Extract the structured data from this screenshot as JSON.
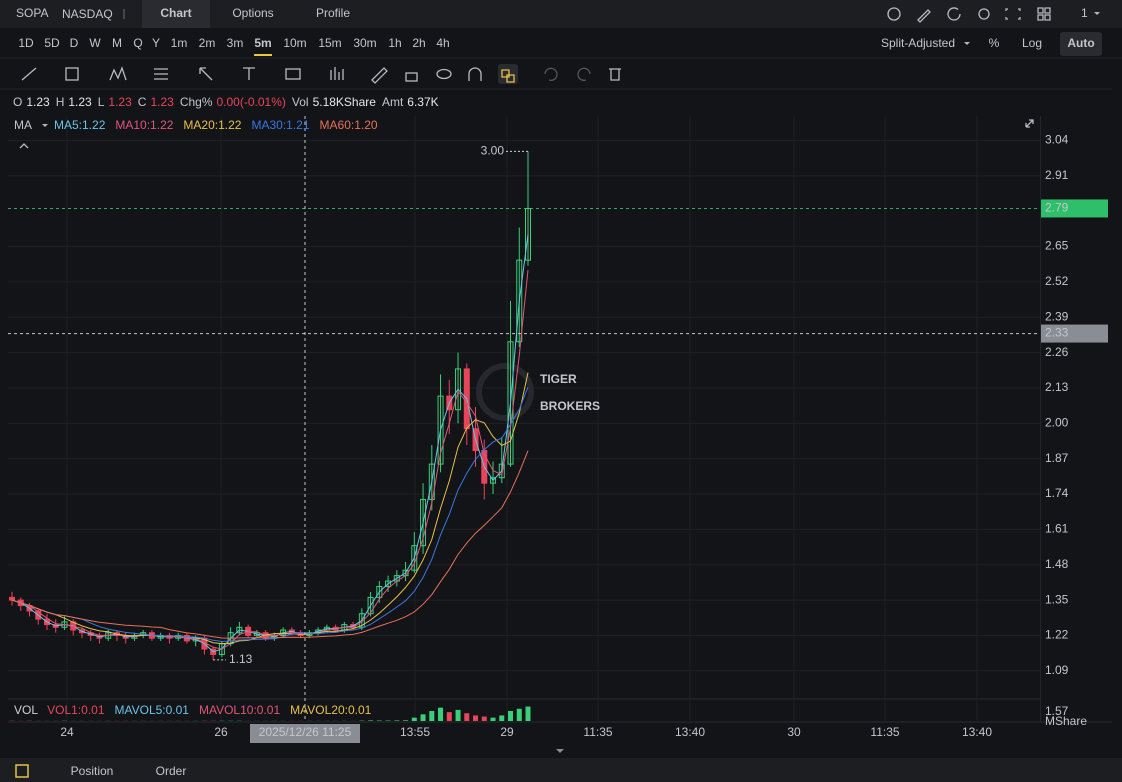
{
  "header": {
    "symbol": "SOPA",
    "exchange": "NASDAQ",
    "tabs": [
      "Chart",
      "Options",
      "Profile"
    ],
    "active_tab": 0,
    "layout_count": "1"
  },
  "intervals": [
    "1D",
    "5D",
    "D",
    "W",
    "M",
    "Q",
    "Y",
    "1m",
    "2m",
    "3m",
    "5m",
    "10m",
    "15m",
    "30m",
    "1h",
    "2h",
    "4h"
  ],
  "active_interval": 10,
  "options": [
    "Split-Adjusted",
    "%",
    "Log",
    "Auto"
  ],
  "active_option": 3,
  "quote": [
    {
      "label": "O",
      "value": 1.23
    },
    {
      "label": "H",
      "value": 1.23
    },
    {
      "label": "L",
      "value": 1.23
    },
    {
      "label": "C",
      "value": 1.23
    },
    {
      "label": "Chg%",
      "value": "0.00(-0.01%)"
    },
    {
      "label": "Vol",
      "value": "5.18KShare"
    },
    {
      "label": "Amt",
      "value": "6.37K"
    }
  ],
  "chart_data": {
    "type": "candlestick",
    "ma_label": "MA",
    "ma_legend": [
      {
        "name": "MA5:1.22",
        "color": "#6cc4e6"
      },
      {
        "name": "MA10:1.22",
        "color": "#e0567a"
      },
      {
        "name": "MA20:1.22",
        "color": "#e6c04a"
      },
      {
        "name": "MA30:1.21",
        "color": "#3a78e0"
      },
      {
        "name": "MA60:1.20",
        "color": "#e8705a"
      }
    ],
    "up_color": "#3ad07a",
    "down_color": "#e8455a",
    "candles": [
      [
        1.36,
        1.38,
        1.33,
        1.35
      ],
      [
        1.35,
        1.36,
        1.31,
        1.33
      ],
      [
        1.33,
        1.34,
        1.29,
        1.31
      ],
      [
        1.31,
        1.32,
        1.26,
        1.28
      ],
      [
        1.28,
        1.3,
        1.24,
        1.26
      ],
      [
        1.26,
        1.28,
        1.23,
        1.25
      ],
      [
        1.25,
        1.29,
        1.24,
        1.27
      ],
      [
        1.27,
        1.28,
        1.22,
        1.24
      ],
      [
        1.24,
        1.25,
        1.21,
        1.23
      ],
      [
        1.23,
        1.24,
        1.2,
        1.22
      ],
      [
        1.22,
        1.23,
        1.19,
        1.21
      ],
      [
        1.21,
        1.24,
        1.2,
        1.23
      ],
      [
        1.23,
        1.24,
        1.2,
        1.22
      ],
      [
        1.22,
        1.23,
        1.19,
        1.21
      ],
      [
        1.21,
        1.23,
        1.2,
        1.22
      ],
      [
        1.22,
        1.24,
        1.21,
        1.23
      ],
      [
        1.23,
        1.24,
        1.2,
        1.21
      ],
      [
        1.21,
        1.23,
        1.2,
        1.22
      ],
      [
        1.22,
        1.23,
        1.19,
        1.21
      ],
      [
        1.21,
        1.23,
        1.2,
        1.22
      ],
      [
        1.22,
        1.23,
        1.19,
        1.2
      ],
      [
        1.2,
        1.22,
        1.18,
        1.21
      ],
      [
        1.21,
        1.22,
        1.15,
        1.17
      ],
      [
        1.17,
        1.18,
        1.13,
        1.15
      ],
      [
        1.15,
        1.2,
        1.14,
        1.19
      ],
      [
        1.19,
        1.25,
        1.18,
        1.23
      ],
      [
        1.23,
        1.27,
        1.22,
        1.25
      ],
      [
        1.25,
        1.26,
        1.21,
        1.22
      ],
      [
        1.22,
        1.24,
        1.21,
        1.23
      ],
      [
        1.23,
        1.24,
        1.2,
        1.21
      ],
      [
        1.21,
        1.23,
        1.2,
        1.22
      ],
      [
        1.22,
        1.25,
        1.21,
        1.24
      ],
      [
        1.24,
        1.25,
        1.22,
        1.23
      ],
      [
        1.23,
        1.24,
        1.21,
        1.22
      ],
      [
        1.22,
        1.24,
        1.21,
        1.23
      ],
      [
        1.23,
        1.25,
        1.22,
        1.24
      ],
      [
        1.24,
        1.26,
        1.23,
        1.25
      ],
      [
        1.25,
        1.26,
        1.23,
        1.24
      ],
      [
        1.24,
        1.27,
        1.23,
        1.26
      ],
      [
        1.26,
        1.27,
        1.24,
        1.25
      ],
      [
        1.25,
        1.32,
        1.24,
        1.3
      ],
      [
        1.3,
        1.38,
        1.29,
        1.36
      ],
      [
        1.36,
        1.42,
        1.34,
        1.4
      ],
      [
        1.4,
        1.44,
        1.38,
        1.42
      ],
      [
        1.42,
        1.46,
        1.4,
        1.44
      ],
      [
        1.44,
        1.49,
        1.42,
        1.46
      ],
      [
        1.46,
        1.6,
        1.45,
        1.55
      ],
      [
        1.55,
        1.78,
        1.52,
        1.72
      ],
      [
        1.72,
        1.92,
        1.68,
        1.85
      ],
      [
        1.85,
        2.18,
        1.82,
        2.1
      ],
      [
        2.1,
        2.16,
        1.96,
        2.05
      ],
      [
        2.05,
        2.26,
        2.0,
        2.2
      ],
      [
        2.2,
        2.22,
        1.92,
        1.98
      ],
      [
        1.98,
        2.06,
        1.84,
        1.9
      ],
      [
        1.9,
        1.94,
        1.72,
        1.78
      ],
      [
        1.78,
        1.86,
        1.74,
        1.8
      ],
      [
        1.8,
        1.95,
        1.78,
        1.85
      ],
      [
        1.85,
        2.45,
        1.84,
        2.3
      ],
      [
        2.3,
        2.72,
        2.28,
        2.6
      ],
      [
        2.6,
        3.0,
        2.58,
        2.79
      ]
    ],
    "ylim": [
      0.99,
      3.13
    ],
    "yticks": [
      3.04,
      2.91,
      2.65,
      2.52,
      2.39,
      2.26,
      2.13,
      {
        "value": 2,
        "label": "2.00"
      },
      1.87,
      1.74,
      1.61,
      1.48,
      1.35,
      1.22,
      1.09
    ],
    "grid": true,
    "last_price": 2.79,
    "crosshair_price": 2.33,
    "crosshair_time": "2025/12/26 11:25",
    "high_annotation": {
      "value": 3,
      "label": "3.00"
    },
    "low_annotation": 1.13,
    "watermark": [
      "TIGER",
      "BROKERS"
    ],
    "xlabels": [
      "24",
      "26",
      "13:55",
      "29",
      "11:35",
      "13:40",
      "30",
      "11:35",
      "13:40"
    ],
    "vol_legend": [
      {
        "name": "VOL",
        "color": "#d0d0d0"
      },
      {
        "name": "VOL1:0.01",
        "color": "#e8455a"
      },
      {
        "name": "MAVOL5:0.01",
        "color": "#6cc4e6"
      },
      {
        "name": "MAVOL10:0.01",
        "color": "#e0567a"
      },
      {
        "name": "MAVOL20:0.01",
        "color": "#e6c04a"
      }
    ],
    "volume": [
      0.02,
      0.01,
      0.02,
      0.01,
      0.01,
      0.01,
      0.02,
      0.01,
      0.01,
      0.01,
      0.01,
      0.01,
      0.01,
      0.01,
      0.01,
      0.01,
      0.01,
      0.01,
      0.01,
      0.01,
      0.01,
      0.01,
      0.02,
      0.02,
      0.02,
      0.02,
      0.02,
      0.01,
      0.01,
      0.01,
      0.01,
      0.01,
      0.01,
      0.01,
      0.01,
      0.01,
      0.01,
      0.01,
      0.01,
      0.01,
      0.03,
      0.05,
      0.04,
      0.04,
      0.05,
      0.06,
      0.3,
      0.6,
      0.9,
      1.2,
      0.8,
      1.0,
      0.7,
      0.5,
      0.4,
      0.3,
      0.5,
      0.9,
      1.1,
      1.3
    ],
    "vol_max_label": 1.57,
    "vol_unit": "MShare",
    "vol_lim": [
      0,
      1.8
    ]
  },
  "footer": {
    "tabs": [
      "Position",
      "Order"
    ]
  }
}
